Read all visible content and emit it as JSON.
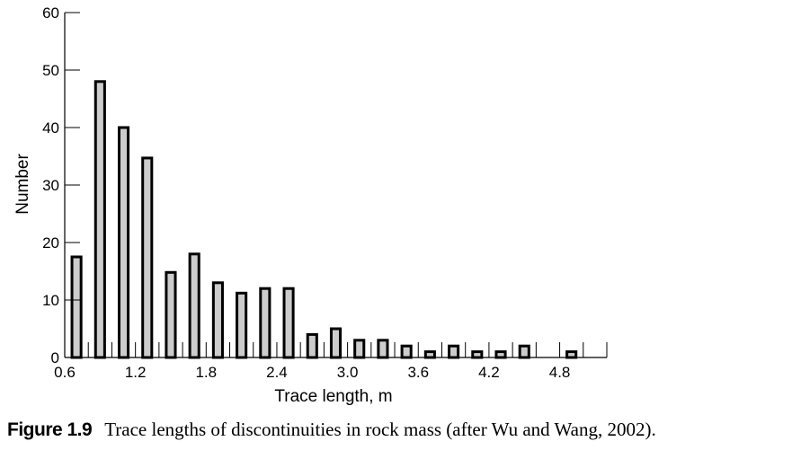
{
  "chart_data": {
    "type": "bar",
    "xlabel": "Trace length, m",
    "ylabel": "Number",
    "ylim": [
      0,
      60
    ],
    "xlim": [
      0.6,
      5.2
    ],
    "yticks": [
      "0",
      "10",
      "20",
      "30",
      "40",
      "50",
      "60"
    ],
    "xtick_labels": [
      "0.6",
      "1.2",
      "1.8",
      "2.4",
      "3.0",
      "3.6",
      "4.2",
      "4.8"
    ],
    "bar_width": 0.1,
    "grid": false,
    "x": [
      0.7,
      0.9,
      1.1,
      1.3,
      1.5,
      1.7,
      1.9,
      2.1,
      2.3,
      2.5,
      2.7,
      2.9,
      3.1,
      3.3,
      3.5,
      3.7,
      3.9,
      4.1,
      4.3,
      4.5,
      4.7,
      4.9
    ],
    "values": [
      17.5,
      48,
      40,
      34.7,
      14.8,
      18,
      13,
      11.2,
      12,
      12,
      4,
      5,
      3,
      3,
      2,
      1,
      2,
      1,
      1,
      2,
      0,
      1
    ],
    "colors": {
      "bar_fill": "#cccccc",
      "bar_stroke": "#000000"
    }
  },
  "caption": {
    "number": "Figure 1.9",
    "text": "Trace lengths of discontinuities in rock mass (after Wu and Wang, 2002)."
  }
}
